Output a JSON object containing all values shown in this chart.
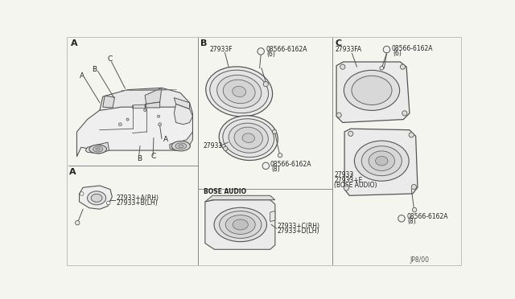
{
  "bg_color": "#f5f5f0",
  "line_color": "#555555",
  "text_color": "#222222",
  "section_labels": [
    "A",
    "B",
    "C"
  ],
  "footer_text": "JP8/00",
  "fs_small": 5.5,
  "fs_label": 6.5,
  "fs_section": 8,
  "dividers": {
    "v1x": 213,
    "v2x": 430,
    "hAy": 210,
    "hBy": 247
  }
}
